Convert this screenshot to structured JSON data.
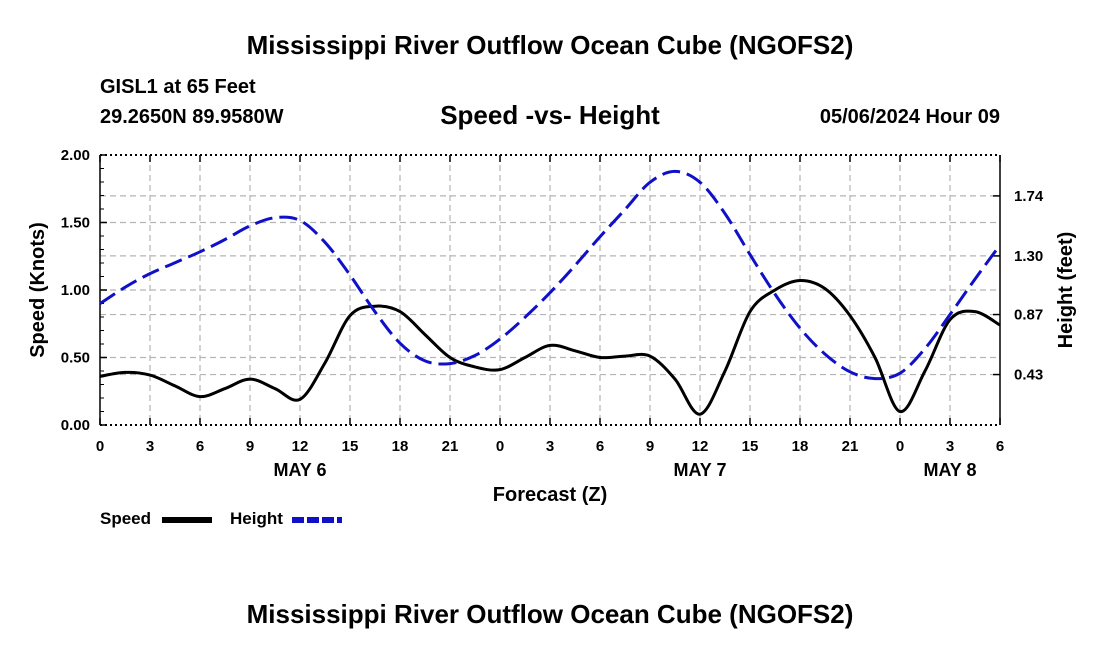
{
  "header": {
    "title": "Mississippi River Outflow Ocean Cube (NGOFS2)",
    "station": "GISL1 at 65 Feet",
    "coords": "29.2650N  89.9580W",
    "subtitle": "Speed -vs- Height",
    "datetime": "05/06/2024 Hour 09"
  },
  "footer": {
    "title": "Mississippi River Outflow Ocean Cube (NGOFS2)"
  },
  "legend": {
    "speed_label": "Speed",
    "height_label": "Height"
  },
  "colors": {
    "speed": "#000000",
    "height": "#1010c8",
    "grid": "#b4b4b4"
  },
  "chart_data": {
    "type": "line",
    "title": "Speed -vs- Height",
    "xlabel": "Forecast (Z)",
    "ylabel": "Speed (Knots)",
    "y2label": "Height (feet)",
    "x_unit": "hours from May 6 00Z",
    "xlim": [
      0,
      54
    ],
    "ylim": [
      0,
      2.0
    ],
    "y2lim": [
      0.06,
      2.04
    ],
    "x_ticks": [
      0,
      3,
      6,
      9,
      12,
      15,
      18,
      21,
      24,
      27,
      30,
      33,
      36,
      39,
      42,
      45,
      48,
      51,
      54
    ],
    "x_tick_labels": [
      "0",
      "3",
      "6",
      "9",
      "12",
      "15",
      "18",
      "21",
      "0",
      "3",
      "6",
      "9",
      "12",
      "15",
      "18",
      "21",
      "0",
      "3",
      "6"
    ],
    "y_ticks": [
      0,
      0.5,
      1.0,
      1.5,
      2.0
    ],
    "y_tick_labels": [
      "0.00",
      "0.50",
      "1.00",
      "1.50",
      "2.00"
    ],
    "y2_ticks": [
      0.43,
      0.87,
      1.3,
      1.74
    ],
    "y2_tick_labels": [
      "0.43",
      "0.87",
      "1.30",
      "1.74"
    ],
    "day_labels": [
      {
        "x": 12,
        "label": "MAY 6"
      },
      {
        "x": 36,
        "label": "MAY 7"
      },
      {
        "x": 51,
        "label": "MAY 8"
      }
    ],
    "legend_position": "bottom-left",
    "grid": true,
    "series": [
      {
        "name": "Speed",
        "axis": "left",
        "style": "solid",
        "x": [
          0,
          1.5,
          3,
          4.5,
          6,
          7.5,
          9,
          10.5,
          12,
          13.5,
          15,
          16.5,
          18,
          19.5,
          21,
          22.5,
          24,
          25.5,
          27,
          28.5,
          30,
          31.5,
          33,
          34.5,
          36,
          37.5,
          39,
          40.5,
          42,
          43.5,
          45,
          46.5,
          48,
          49.5,
          51,
          52.5,
          54
        ],
        "values": [
          0.36,
          0.39,
          0.37,
          0.29,
          0.21,
          0.27,
          0.34,
          0.27,
          0.19,
          0.46,
          0.81,
          0.88,
          0.84,
          0.67,
          0.5,
          0.43,
          0.41,
          0.5,
          0.59,
          0.55,
          0.5,
          0.51,
          0.51,
          0.34,
          0.08,
          0.4,
          0.84,
          1.0,
          1.07,
          1.01,
          0.81,
          0.5,
          0.1,
          0.4,
          0.78,
          0.84,
          0.74
        ]
      },
      {
        "name": "Height",
        "axis": "right",
        "style": "dashed",
        "x": [
          0,
          1.5,
          3,
          4.5,
          6,
          7.5,
          9,
          10.5,
          12,
          13.5,
          15,
          16.5,
          18,
          19.5,
          21,
          22.5,
          24,
          25.5,
          27,
          28.5,
          30,
          31.5,
          33,
          34.5,
          36,
          37.5,
          39,
          40.5,
          42,
          43.5,
          45,
          46.5,
          48,
          49.5,
          51,
          52.5,
          54
        ],
        "values": [
          0.95,
          1.07,
          1.17,
          1.25,
          1.33,
          1.42,
          1.52,
          1.58,
          1.56,
          1.4,
          1.16,
          0.89,
          0.66,
          0.53,
          0.51,
          0.57,
          0.69,
          0.85,
          1.03,
          1.23,
          1.44,
          1.64,
          1.84,
          1.92,
          1.84,
          1.61,
          1.31,
          1.02,
          0.77,
          0.58,
          0.45,
          0.4,
          0.44,
          0.62,
          0.87,
          1.13,
          1.38
        ]
      }
    ]
  }
}
